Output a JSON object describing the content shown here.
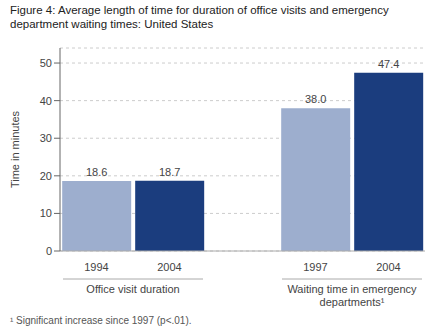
{
  "chart_data": {
    "type": "bar",
    "title": "Figure 4: Average length of time for duration of office visits and emergency\ndepartment waiting times: United States",
    "ylabel": "Time in minutes",
    "categories": [
      "1994",
      "2004",
      "1997",
      "2004"
    ],
    "group": [
      "Office visit duration",
      "Office visit duration",
      "Waiting time in emergency\ndepartments¹",
      "Waiting time in emergency\ndepartments¹"
    ],
    "values": [
      18.6,
      18.7,
      38.0,
      47.4
    ],
    "value_labels": [
      "18.6",
      "18.7",
      "38.0",
      "47.4"
    ],
    "colors": [
      "#9daece",
      "#1b3d7e",
      "#9daece",
      "#1b3d7e"
    ],
    "ylim": [
      0,
      54
    ],
    "yticks": [
      0,
      10,
      20,
      30,
      40,
      50
    ],
    "grid": true,
    "data_labels": true,
    "annotations": [
      "¹ Significant increase since 1997 (p<.01)."
    ]
  }
}
